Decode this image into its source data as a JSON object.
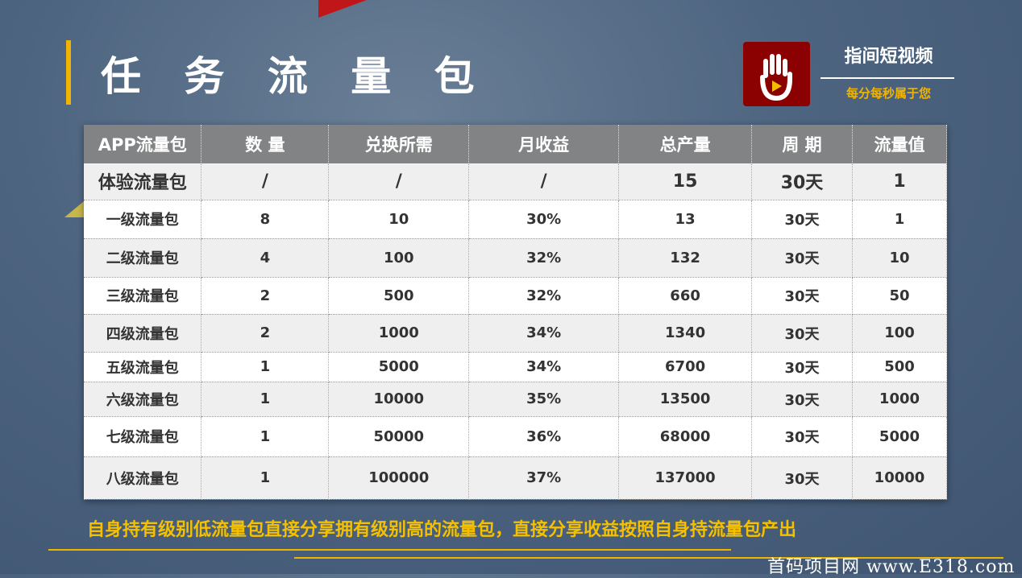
{
  "title": "任 务 流 量 包",
  "brand": {
    "name": "指间短视频",
    "slogan": "每分每秒属于您",
    "logo_icon": "hand-play-icon",
    "logo_color": "#8b0000"
  },
  "table": {
    "headers": [
      "APP流量包",
      "数 量",
      "兑换所需",
      "月收益",
      "总产量",
      "周 期",
      "流量值"
    ],
    "rows": [
      [
        "体验流量包",
        "/",
        "/",
        "/",
        "15",
        "30天",
        "1"
      ],
      [
        "一级流量包",
        "8",
        "10",
        "30%",
        "13",
        "30天",
        "1"
      ],
      [
        "二级流量包",
        "4",
        "100",
        "32%",
        "132",
        "30天",
        "10"
      ],
      [
        "三级流量包",
        "2",
        "500",
        "32%",
        "660",
        "30天",
        "50"
      ],
      [
        "四级流量包",
        "2",
        "1000",
        "34%",
        "1340",
        "30天",
        "100"
      ],
      [
        "五级流量包",
        "1",
        "5000",
        "34%",
        "6700",
        "30天",
        "500"
      ],
      [
        "六级流量包",
        "1",
        "10000",
        "35%",
        "13500",
        "30天",
        "1000"
      ],
      [
        "七级流量包",
        "1",
        "50000",
        "36%",
        "68000",
        "30天",
        "5000"
      ],
      [
        "八级流量包",
        "1",
        "100000",
        "37%",
        "137000",
        "30天",
        "10000"
      ]
    ]
  },
  "note": "自身持有级别低流量包直接分享拥有级别高的流量包，直接分享收益按照自身持流量包产出",
  "watermark": "首码项目网 www.E318.com",
  "accent": "#f0b400"
}
